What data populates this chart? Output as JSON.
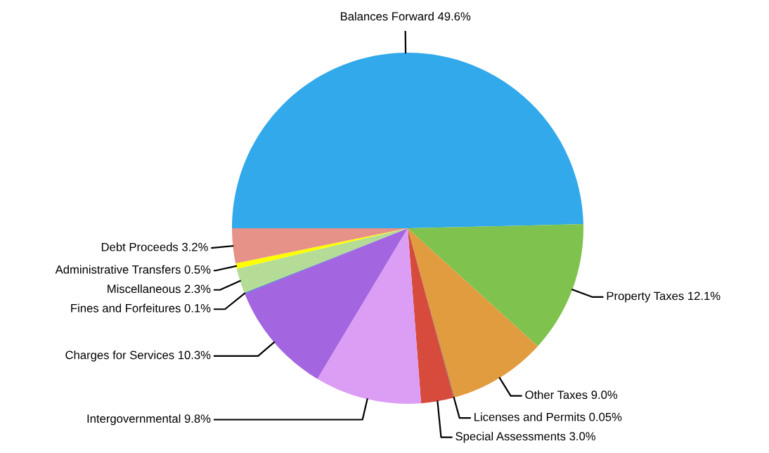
{
  "chart_data": {
    "type": "pie",
    "categories": [
      "Balances Forward",
      "Property Taxes",
      "Other Taxes",
      "Licenses and Permits",
      "Special Assessments",
      "Intergovernmental",
      "Charges for Services",
      "Fines and Forfeitures",
      "Miscellaneous",
      "Administrative Transfers",
      "Debt Proceeds"
    ],
    "values": [
      49.6,
      12.1,
      9.0,
      0.05,
      3.0,
      9.8,
      10.3,
      0.1,
      2.3,
      0.5,
      3.2
    ],
    "value_labels": [
      "49.6%",
      "12.1%",
      "9.0%",
      "0.05%",
      "3.0%",
      "9.8%",
      "10.3%",
      "0.1%",
      "2.3%",
      "0.5%",
      "3.2%"
    ],
    "colors": [
      "#31a9ea",
      "#80c24e",
      "#e29c40",
      "#555555",
      "#d64b3c",
      "#dc9ef5",
      "#a466e0",
      "#4a6fd0",
      "#b4dc96",
      "#ffff00",
      "#e69288"
    ],
    "legend": false
  }
}
